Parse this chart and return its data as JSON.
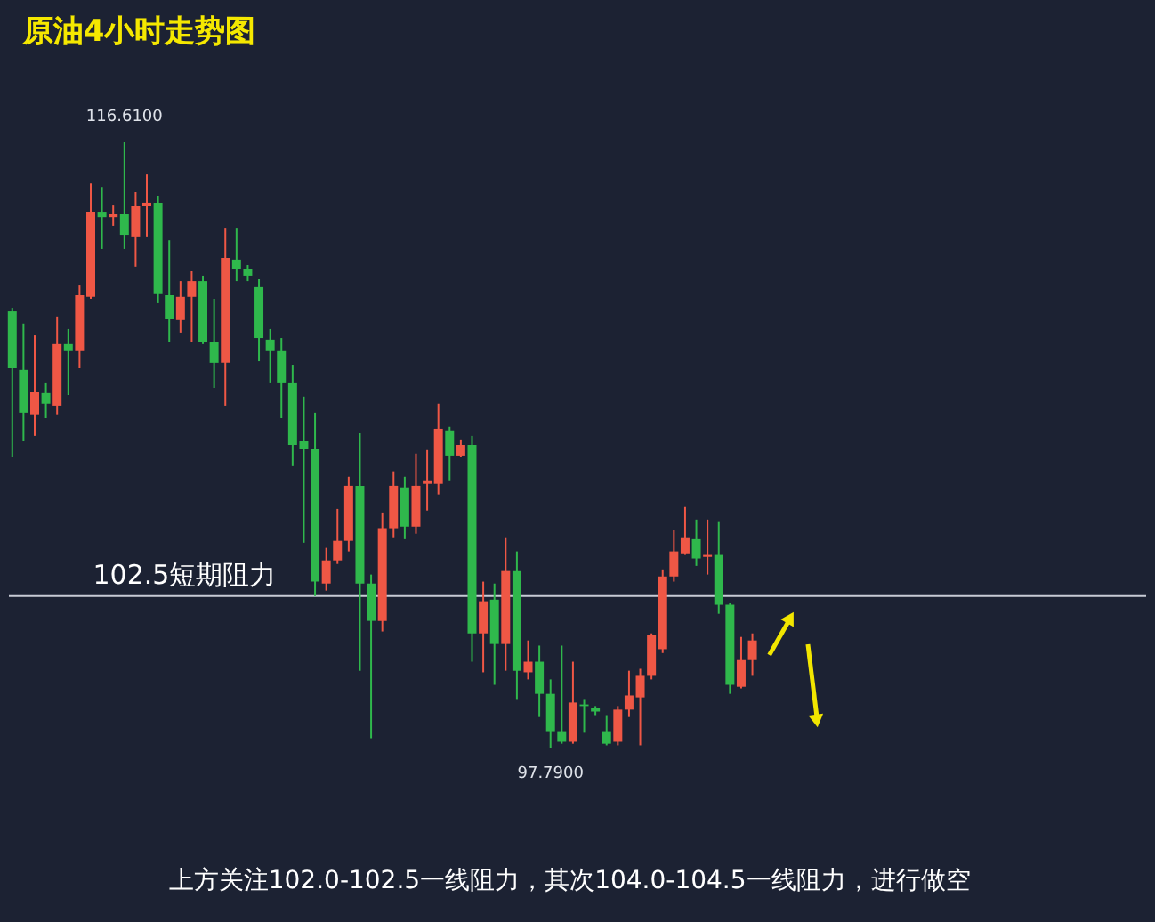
{
  "chart_data": {
    "type": "candlestick",
    "title": "原油4小时走势图",
    "categories": [
      null,
      null,
      null,
      null,
      null,
      null,
      null,
      null,
      null,
      null,
      null,
      null,
      null,
      null,
      null,
      null,
      null,
      null,
      null,
      null,
      null,
      null,
      null,
      null,
      null,
      null,
      null,
      null,
      null,
      null,
      null,
      null,
      null,
      null,
      null,
      null,
      null,
      null,
      null,
      null,
      null,
      null,
      null,
      null,
      null,
      null,
      null,
      null,
      null,
      null,
      null,
      null,
      null,
      null,
      null,
      null,
      null,
      null,
      null,
      null,
      null,
      null,
      null,
      null,
      null,
      null,
      null
    ],
    "ohlc": [
      [
        111.35,
        111.46,
        106.82,
        109.58
      ],
      [
        109.53,
        110.97,
        107.31,
        108.2
      ],
      [
        108.15,
        110.63,
        107.48,
        108.86
      ],
      [
        108.81,
        109.14,
        108.03,
        108.48
      ],
      [
        108.42,
        111.19,
        108.15,
        110.36
      ],
      [
        110.36,
        110.8,
        108.75,
        110.14
      ],
      [
        110.14,
        112.18,
        109.58,
        111.85
      ],
      [
        111.8,
        115.33,
        111.74,
        114.45
      ],
      [
        114.45,
        115.22,
        113.29,
        114.28
      ],
      [
        114.28,
        114.67,
        114.01,
        114.39
      ],
      [
        114.39,
        116.61,
        113.29,
        113.73
      ],
      [
        113.68,
        115.06,
        112.74,
        114.62
      ],
      [
        114.62,
        115.61,
        113.68,
        114.73
      ],
      [
        114.73,
        114.95,
        111.63,
        111.91
      ],
      [
        111.85,
        113.56,
        110.41,
        111.13
      ],
      [
        111.08,
        112.29,
        110.69,
        111.8
      ],
      [
        111.8,
        112.62,
        110.41,
        112.29
      ],
      [
        112.29,
        112.46,
        110.36,
        110.41
      ],
      [
        110.41,
        111.74,
        108.97,
        109.75
      ],
      [
        109.75,
        113.95,
        108.42,
        113.01
      ],
      [
        112.96,
        113.95,
        112.29,
        112.68
      ],
      [
        112.68,
        112.79,
        112.29,
        112.46
      ],
      [
        112.13,
        112.35,
        109.8,
        110.52
      ],
      [
        110.47,
        110.8,
        109.14,
        110.14
      ],
      [
        110.14,
        110.52,
        108.03,
        109.14
      ],
      [
        109.14,
        109.69,
        106.54,
        107.2
      ],
      [
        107.31,
        108.7,
        104.16,
        107.09
      ],
      [
        107.09,
        108.2,
        102.5,
        102.95
      ],
      [
        102.89,
        104.0,
        102.67,
        103.61
      ],
      [
        103.61,
        105.21,
        103.5,
        104.22
      ],
      [
        104.22,
        106.21,
        103.89,
        105.93
      ],
      [
        105.93,
        107.59,
        100.18,
        102.89
      ],
      [
        102.89,
        103.17,
        98.08,
        101.73
      ],
      [
        101.73,
        105.1,
        101.4,
        104.61
      ],
      [
        104.61,
        106.38,
        104.33,
        105.93
      ],
      [
        105.88,
        106.21,
        104.27,
        104.66
      ],
      [
        104.66,
        106.93,
        104.44,
        105.93
      ],
      [
        105.99,
        107.04,
        105.16,
        106.1
      ],
      [
        105.99,
        108.48,
        105.66,
        107.7
      ],
      [
        107.65,
        107.76,
        106.1,
        106.87
      ],
      [
        106.87,
        107.37,
        106.82,
        107.2
      ],
      [
        107.2,
        107.48,
        100.46,
        101.34
      ],
      [
        101.34,
        102.95,
        100.13,
        102.34
      ],
      [
        102.39,
        102.89,
        99.74,
        101.01
      ],
      [
        101.01,
        104.33,
        100.18,
        103.28
      ],
      [
        103.28,
        103.89,
        99.3,
        100.18
      ],
      [
        100.13,
        101.12,
        99.91,
        100.46
      ],
      [
        100.46,
        100.96,
        98.74,
        99.46
      ],
      [
        99.46,
        99.91,
        97.79,
        98.3
      ],
      [
        98.3,
        100.96,
        97.91,
        97.97
      ],
      [
        97.97,
        100.46,
        97.91,
        99.19
      ],
      [
        99.13,
        99.3,
        98.25,
        99.08
      ],
      [
        99.02,
        99.08,
        98.8,
        98.91
      ],
      [
        98.3,
        98.8,
        97.86,
        97.91
      ],
      [
        97.97,
        99.08,
        97.86,
        98.97
      ],
      [
        98.97,
        100.18,
        98.74,
        99.41
      ],
      [
        99.35,
        100.24,
        97.86,
        100.02
      ],
      [
        100.02,
        101.34,
        99.91,
        101.29
      ],
      [
        100.85,
        103.33,
        100.73,
        103.11
      ],
      [
        103.11,
        104.55,
        102.95,
        103.89
      ],
      [
        103.83,
        105.27,
        103.78,
        104.33
      ],
      [
        104.27,
        104.88,
        103.44,
        103.67
      ],
      [
        103.72,
        104.88,
        103.17,
        103.78
      ],
      [
        103.78,
        104.83,
        101.95,
        102.23
      ],
      [
        102.23,
        102.28,
        99.46,
        99.74
      ],
      [
        99.68,
        101.23,
        99.63,
        100.51
      ],
      [
        100.51,
        101.34,
        100.02,
        101.12
      ]
    ],
    "colors": [
      "#2fb84c",
      "#2fb84c",
      "#ef5745",
      "#2fb84c",
      "#ef5745",
      "#2fb84c",
      "#ef5745",
      "#ef5745",
      "#2fb84c",
      "#ef5745",
      "#2fb84c",
      "#ef5745",
      "#ef5745",
      "#2fb84c",
      "#2fb84c",
      "#ef5745",
      "#ef5745",
      "#2fb84c",
      "#2fb84c",
      "#ef5745",
      "#2fb84c",
      "#2fb84c",
      "#2fb84c",
      "#2fb84c",
      "#2fb84c",
      "#2fb84c",
      "#2fb84c",
      "#2fb84c",
      "#ef5745",
      "#ef5745",
      "#ef5745",
      "#2fb84c",
      "#2fb84c",
      "#ef5745",
      "#ef5745",
      "#2fb84c",
      "#ef5745",
      "#ef5745",
      "#ef5745",
      "#2fb84c",
      "#ef5745",
      "#2fb84c",
      "#ef5745",
      "#2fb84c",
      "#ef5745",
      "#2fb84c",
      "#ef5745",
      "#2fb84c",
      "#2fb84c",
      "#2fb84c",
      "#ef5745",
      "#2fb84c",
      "#2fb84c",
      "#2fb84c",
      "#ef5745",
      "#ef5745",
      "#ef5745",
      "#ef5745",
      "#ef5745",
      "#ef5745",
      "#ef5745",
      "#2fb84c",
      "#ef5745",
      "#2fb84c",
      "#2fb84c",
      "#ef5745",
      "#ef5745"
    ],
    "ref_lines": [
      {
        "axis": "y",
        "value": 102.5,
        "label": "102.5短期阻力",
        "color": "#c8ccd6"
      }
    ],
    "annotations": [
      {
        "text": "116.6100",
        "y": 116.61
      },
      {
        "text": "97.7900",
        "y": 97.79
      },
      "上方关注102.0-102.5一线阻力，其次104.0-104.5一线阻力，进行做空"
    ]
  }
}
